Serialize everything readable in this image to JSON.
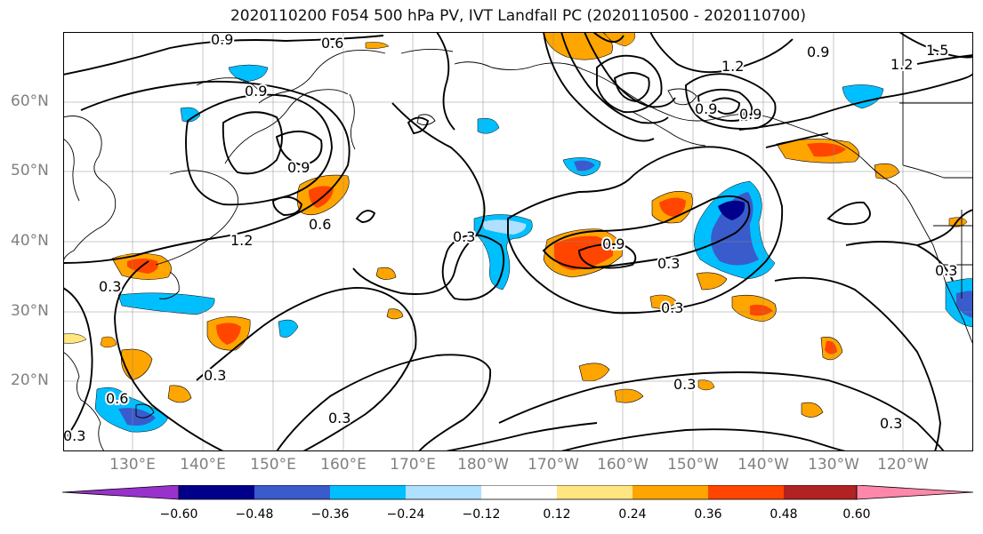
{
  "title": "2020110200 F054 500 hPa PV, IVT Landfall PC (2020110500 - 2020110700)",
  "lat_labels": [
    "60°N",
    "50°N",
    "40°N",
    "30°N",
    "20°N"
  ],
  "lon_labels": [
    "130°E",
    "140°E",
    "150°E",
    "160°E",
    "170°E",
    "180°W",
    "170°W",
    "160°W",
    "150°W",
    "140°W",
    "130°W",
    "120°W"
  ],
  "map_extent": {
    "lon_min": 120,
    "lon_max": 250,
    "lat_min": 10,
    "lat_max": 70
  },
  "grid": true,
  "contour_labels": [
    "0.9",
    "0.6",
    "0.9",
    "0.9",
    "1.2",
    "0.9",
    "1.5",
    "1.2",
    "1.2",
    "1.5",
    "0.9",
    "0.6",
    "0.9",
    "0.3",
    "0.3",
    "0.3",
    "0.3",
    "0.3",
    "0.6",
    "0.3",
    "0.3",
    "0.3",
    "0.9",
    "0.3",
    "0.3"
  ],
  "colorbar": {
    "ticks": [
      "−0.60",
      "−0.48",
      "−0.36",
      "−0.24",
      "−0.12",
      "0.12",
      "0.24",
      "0.36",
      "0.48",
      "0.60"
    ],
    "colors": [
      "#9932cc",
      "#00008b",
      "#3a5bcc",
      "#00bfff",
      "#b0e0ff",
      "#ffffff",
      "#ffe680",
      "#ffa500",
      "#ff4500",
      "#b22222",
      "#ff88aa"
    ]
  },
  "shading_colors": {
    "neg_light": "#b0e0ff",
    "neg_mid": "#00bfff",
    "neg_strong": "#3a5bcc",
    "neg_max": "#00008b",
    "pos_light": "#ffe680",
    "pos_mid": "#ffa500",
    "pos_strong": "#ff4500"
  }
}
